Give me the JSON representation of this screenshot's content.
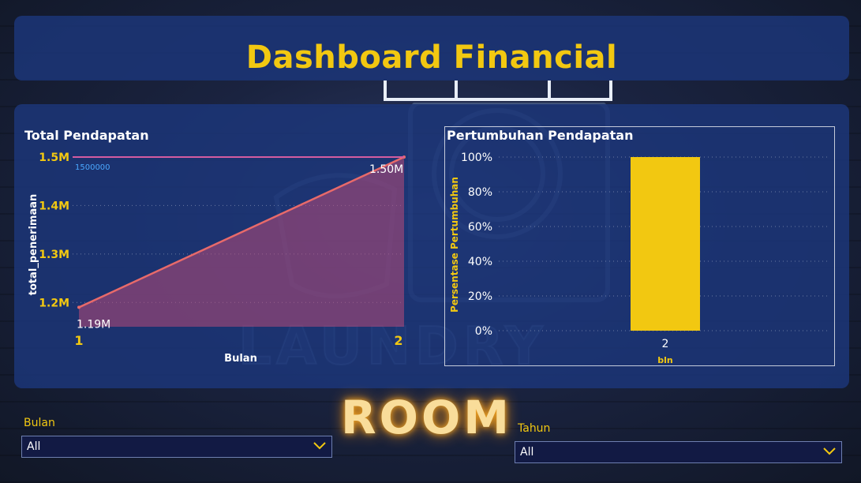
{
  "header": {
    "title": "Dashboard Financial"
  },
  "background": {
    "neon_text": "ROOM",
    "neon_text_faint": "LAUNDRY"
  },
  "charts": {
    "left": {
      "title": "Total Pendapatan",
      "x_axis_label": "Bulan",
      "y_axis_label": "total_penerimaan",
      "y_ticks": [
        "1.2M",
        "1.3M",
        "1.4M",
        "1.5M"
      ],
      "x_ticks": [
        "1",
        "2"
      ],
      "reference_line_label": "1500000",
      "data_labels": [
        "1.19M",
        "1.50M"
      ]
    },
    "right": {
      "title": "Pertumbuhan Pendapatan",
      "x_axis_label": "bln",
      "y_axis_label": "Persentase Pertumbuhan",
      "y_ticks": [
        "0%",
        "20%",
        "40%",
        "60%",
        "80%",
        "100%"
      ],
      "x_ticks": [
        "2"
      ]
    }
  },
  "chart_data": [
    {
      "type": "area",
      "title": "Total Pendapatan",
      "xlabel": "Bulan",
      "ylabel": "total_penerimaan",
      "x": [
        1,
        2
      ],
      "values": [
        1190000,
        1500000
      ],
      "ylim": [
        1150000,
        1500000
      ],
      "reference_line": 1500000,
      "grid": true,
      "colors": {
        "line": "#e86a6a",
        "fill": "#b84a78",
        "reference": "#d45ca0"
      }
    },
    {
      "type": "bar",
      "title": "Pertumbuhan Pendapatan",
      "xlabel": "bln",
      "ylabel": "Persentase Pertumbuhan",
      "categories": [
        "2"
      ],
      "values": [
        100
      ],
      "ylim": [
        0,
        100
      ],
      "grid": true,
      "colors": {
        "bar": "#f2c811"
      }
    }
  ],
  "slicers": {
    "bulan": {
      "label": "Bulan",
      "value": "All"
    },
    "tahun": {
      "label": "Tahun",
      "value": "All"
    }
  },
  "colors": {
    "accent": "#f2c811",
    "panel": "#1c3678",
    "text": "#ffffff"
  }
}
